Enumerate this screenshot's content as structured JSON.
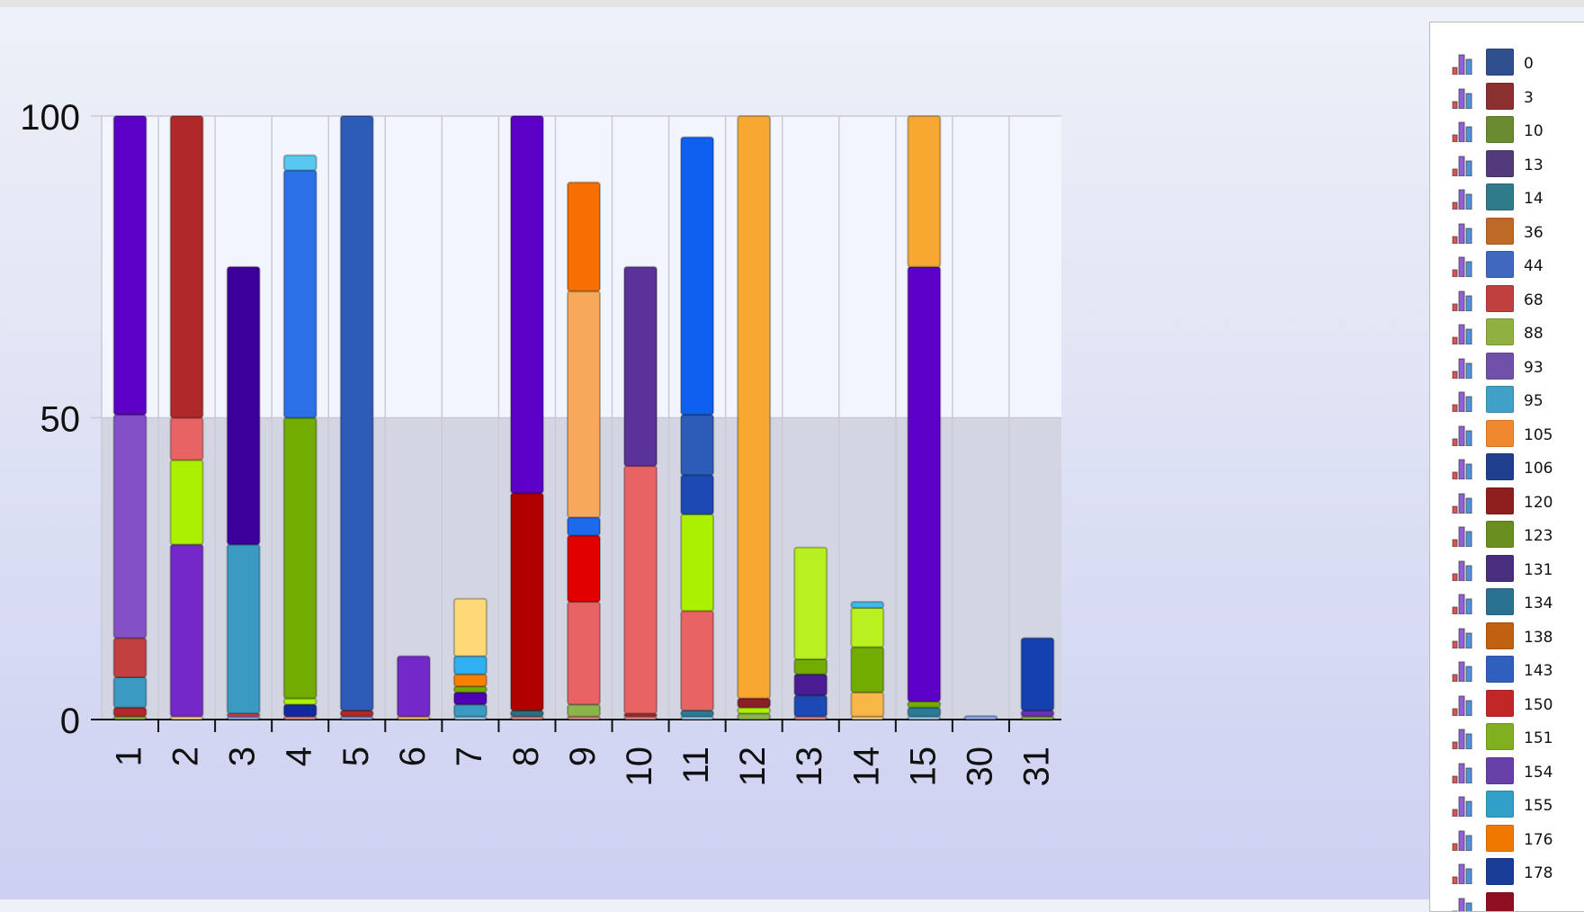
{
  "chart_data": {
    "type": "bar",
    "stacked": true,
    "categories": [
      "1",
      "2",
      "3",
      "4",
      "5",
      "6",
      "7",
      "8",
      "9",
      "10",
      "11",
      "12",
      "13",
      "14",
      "15",
      "30",
      "31"
    ],
    "ylim": [
      0,
      100
    ],
    "yticks": [
      "0",
      "50",
      "100"
    ],
    "grid": true,
    "legend_position": "right",
    "bars": [
      {
        "category": "1",
        "segments": [
          {
            "color": "#8db44a",
            "value": 0.5
          },
          {
            "color": "#b22828",
            "value": 1.5
          },
          {
            "color": "#3a9ac2",
            "value": 5
          },
          {
            "color": "#c24040",
            "value": 6.5
          },
          {
            "color": "#8350c8",
            "value": 37
          },
          {
            "color": "#5c00c8",
            "value": 49.5
          }
        ]
      },
      {
        "category": "2",
        "segments": [
          {
            "color": "#f7d490",
            "value": 0.5
          },
          {
            "color": "#7428c8",
            "value": 28.5
          },
          {
            "color": "#aaf000",
            "value": 14
          },
          {
            "color": "#e86464",
            "value": 7
          },
          {
            "color": "#b02828",
            "value": 50
          }
        ]
      },
      {
        "category": "3",
        "segments": [
          {
            "color": "#8aa0e0",
            "value": 0.5
          },
          {
            "color": "#d84040",
            "value": 0.5
          },
          {
            "color": "#3a9ac2",
            "value": 28
          },
          {
            "color": "#3c009a",
            "value": 46
          }
        ]
      },
      {
        "category": "4",
        "segments": [
          {
            "color": "#d88888",
            "value": 0.5
          },
          {
            "color": "#1428a0",
            "value": 2
          },
          {
            "color": "#aaf000",
            "value": 1
          },
          {
            "color": "#72ac00",
            "value": 46.5
          },
          {
            "color": "#2c70e8",
            "value": 41
          },
          {
            "color": "#58c8f0",
            "value": 2.5
          }
        ]
      },
      {
        "category": "5",
        "segments": [
          {
            "color": "#8aa0e0",
            "value": 0.5
          },
          {
            "color": "#b02828",
            "value": 1
          },
          {
            "color": "#2a5cb8",
            "value": 98.5
          }
        ]
      },
      {
        "category": "6",
        "segments": [
          {
            "color": "#f0b870",
            "value": 0.5
          },
          {
            "color": "#7428c8",
            "value": 10
          }
        ]
      },
      {
        "category": "7",
        "segments": [
          {
            "color": "#a0c8e8",
            "value": 0.5
          },
          {
            "color": "#3a9ac2",
            "value": 2
          },
          {
            "color": "#5000b4",
            "value": 2
          },
          {
            "color": "#72ac00",
            "value": 1
          },
          {
            "color": "#f88000",
            "value": 2
          },
          {
            "color": "#30b0f0",
            "value": 3
          },
          {
            "color": "#ffd878",
            "value": 9.5
          }
        ]
      },
      {
        "category": "8",
        "segments": [
          {
            "color": "#d88888",
            "value": 0.5
          },
          {
            "color": "#2a7080",
            "value": 1
          },
          {
            "color": "#b00000",
            "value": 36
          },
          {
            "color": "#5c00c8",
            "value": 62.5
          }
        ]
      },
      {
        "category": "9",
        "segments": [
          {
            "color": "#d88888",
            "value": 0.5
          },
          {
            "color": "#8db44a",
            "value": 2
          },
          {
            "color": "#e86464",
            "value": 17
          },
          {
            "color": "#e00000",
            "value": 11
          },
          {
            "color": "#1e6aec",
            "value": 3
          },
          {
            "color": "#f7a85a",
            "value": 37.5
          },
          {
            "color": "#f57000",
            "value": 18
          }
        ]
      },
      {
        "category": "10",
        "segments": [
          {
            "color": "#d88888",
            "value": 0.5
          },
          {
            "color": "#b02828",
            "value": 0.5
          },
          {
            "color": "#e86464",
            "value": 41
          },
          {
            "color": "#5a329a",
            "value": 33
          }
        ]
      },
      {
        "category": "11",
        "segments": [
          {
            "color": "#a0c8e8",
            "value": 0.5
          },
          {
            "color": "#2a7c96",
            "value": 1
          },
          {
            "color": "#e86464",
            "value": 16.5
          },
          {
            "color": "#aaf000",
            "value": 16
          },
          {
            "color": "#1c4ab4",
            "value": 6.5
          },
          {
            "color": "#2a5cb8",
            "value": 10
          },
          {
            "color": "#1060f0",
            "value": 46
          }
        ]
      },
      {
        "category": "12",
        "segments": [
          {
            "color": "#8db44a",
            "value": 1
          },
          {
            "color": "#aaf000",
            "value": 1
          },
          {
            "color": "#8c1e28",
            "value": 1.5
          },
          {
            "color": "#f8a830",
            "value": 96.5
          }
        ]
      },
      {
        "category": "13",
        "segments": [
          {
            "color": "#d88888",
            "value": 0.5
          },
          {
            "color": "#1c4ab4",
            "value": 3.5
          },
          {
            "color": "#4a1c94",
            "value": 3.5
          },
          {
            "color": "#72ac00",
            "value": 2.5
          },
          {
            "color": "#b8f020",
            "value": 18.5
          }
        ]
      },
      {
        "category": "14",
        "segments": [
          {
            "color": "#f7d490",
            "value": 0.5
          },
          {
            "color": "#f8b848",
            "value": 4
          },
          {
            "color": "#72ac00",
            "value": 7.5
          },
          {
            "color": "#b8f020",
            "value": 6.5
          },
          {
            "color": "#40b8e8",
            "value": 1
          }
        ]
      },
      {
        "category": "15",
        "segments": [
          {
            "color": "#a0c8e8",
            "value": 0.5
          },
          {
            "color": "#2a7c96",
            "value": 1.5
          },
          {
            "color": "#72ac00",
            "value": 1
          },
          {
            "color": "#5c00c8",
            "value": 72
          },
          {
            "color": "#f8a830",
            "value": 25
          }
        ]
      },
      {
        "category": "30",
        "segments": [
          {
            "color": "#8aa0e0",
            "value": 0.6
          }
        ]
      },
      {
        "category": "31",
        "segments": [
          {
            "color": "#8db44a",
            "value": 0.5
          },
          {
            "color": "#6a30b8",
            "value": 1
          },
          {
            "color": "#1440b0",
            "value": 12
          }
        ]
      }
    ]
  },
  "legend": {
    "items": [
      {
        "label": "0",
        "color": "#2f4f8f"
      },
      {
        "label": "3",
        "color": "#8b2f2f"
      },
      {
        "label": "10",
        "color": "#6b8b2f"
      },
      {
        "label": "13",
        "color": "#533b7b"
      },
      {
        "label": "14",
        "color": "#2f7b8b"
      },
      {
        "label": "36",
        "color": "#c06a28"
      },
      {
        "label": "44",
        "color": "#4068c0"
      },
      {
        "label": "68",
        "color": "#c04040"
      },
      {
        "label": "88",
        "color": "#90b040"
      },
      {
        "label": "93",
        "color": "#7050a8"
      },
      {
        "label": "95",
        "color": "#40a0c8"
      },
      {
        "label": "105",
        "color": "#f08830"
      },
      {
        "label": "106",
        "color": "#203f8f"
      },
      {
        "label": "120",
        "color": "#8f1f1f"
      },
      {
        "label": "123",
        "color": "#6a8f1f"
      },
      {
        "label": "131",
        "color": "#4a2f80"
      },
      {
        "label": "134",
        "color": "#2a7090"
      },
      {
        "label": "138",
        "color": "#c06010"
      },
      {
        "label": "143",
        "color": "#2f60c0"
      },
      {
        "label": "150",
        "color": "#c02828"
      },
      {
        "label": "151",
        "color": "#80b020"
      },
      {
        "label": "154",
        "color": "#6840a8"
      },
      {
        "label": "155",
        "color": "#30a0c8"
      },
      {
        "label": "176",
        "color": "#f07800"
      },
      {
        "label": "178",
        "color": "#183c98"
      },
      {
        "label": "",
        "color": "#8f1020"
      }
    ]
  }
}
